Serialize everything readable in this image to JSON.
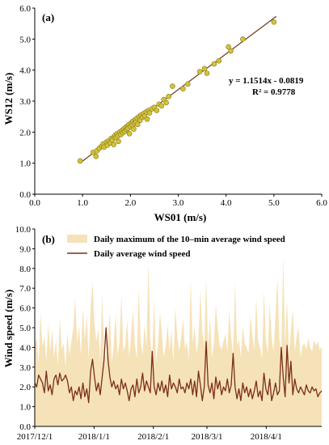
{
  "chart_data": [
    {
      "panel": "(a)",
      "type": "scatter",
      "xlabel": "WS01 (m/s)",
      "ylabel": "WS12 (m/s)",
      "xlim": [
        0.0,
        6.0
      ],
      "ylim": [
        0.0,
        6.0
      ],
      "x_ticks": [
        "0.0",
        "1.0",
        "2.0",
        "3.0",
        "4.0",
        "5.0",
        "6.0"
      ],
      "y_ticks": [
        "0.0",
        "1.0",
        "2.0",
        "3.0",
        "4.0",
        "5.0",
        "6.0"
      ],
      "grid": false,
      "annotations": [
        "y = 1.1514x - 0.0819",
        "R² = 0.9778"
      ],
      "trendline": {
        "slope": 1.1514,
        "intercept": -0.0819,
        "x_range": [
          0.95,
          5.05
        ]
      },
      "points": [
        [
          0.95,
          1.07
        ],
        [
          1.22,
          1.35
        ],
        [
          1.28,
          1.22
        ],
        [
          1.3,
          1.4
        ],
        [
          1.35,
          1.48
        ],
        [
          1.4,
          1.55
        ],
        [
          1.43,
          1.62
        ],
        [
          1.45,
          1.52
        ],
        [
          1.5,
          1.68
        ],
        [
          1.52,
          1.58
        ],
        [
          1.55,
          1.72
        ],
        [
          1.58,
          1.65
        ],
        [
          1.6,
          1.8
        ],
        [
          1.62,
          1.75
        ],
        [
          1.65,
          1.6
        ],
        [
          1.66,
          1.85
        ],
        [
          1.68,
          1.9
        ],
        [
          1.7,
          1.82
        ],
        [
          1.72,
          1.95
        ],
        [
          1.74,
          1.88
        ],
        [
          1.75,
          1.7
        ],
        [
          1.78,
          2.0
        ],
        [
          1.8,
          1.92
        ],
        [
          1.82,
          2.05
        ],
        [
          1.84,
          1.98
        ],
        [
          1.86,
          2.1
        ],
        [
          1.88,
          2.02
        ],
        [
          1.9,
          2.15
        ],
        [
          1.92,
          2.08
        ],
        [
          1.94,
          2.2
        ],
        [
          1.95,
          2.12
        ],
        [
          1.97,
          2.25
        ],
        [
          1.98,
          1.95
        ],
        [
          2.0,
          2.18
        ],
        [
          2.02,
          2.3
        ],
        [
          2.04,
          2.22
        ],
        [
          2.05,
          2.35
        ],
        [
          2.07,
          2.1
        ],
        [
          2.08,
          2.28
        ],
        [
          2.1,
          2.4
        ],
        [
          2.12,
          2.32
        ],
        [
          2.14,
          2.45
        ],
        [
          2.15,
          2.25
        ],
        [
          2.18,
          2.5
        ],
        [
          2.2,
          2.38
        ],
        [
          2.22,
          2.55
        ],
        [
          2.25,
          2.48
        ],
        [
          2.28,
          2.6
        ],
        [
          2.3,
          2.52
        ],
        [
          2.33,
          2.65
        ],
        [
          2.35,
          2.42
        ],
        [
          2.38,
          2.7
        ],
        [
          2.4,
          2.62
        ],
        [
          2.45,
          2.75
        ],
        [
          2.5,
          2.8
        ],
        [
          2.55,
          2.7
        ],
        [
          2.6,
          2.9
        ],
        [
          2.65,
          2.85
        ],
        [
          2.7,
          3.05
        ],
        [
          2.75,
          2.95
        ],
        [
          2.8,
          3.15
        ],
        [
          2.88,
          3.48
        ],
        [
          3.1,
          3.4
        ],
        [
          3.2,
          3.55
        ],
        [
          3.45,
          3.95
        ],
        [
          3.55,
          4.05
        ],
        [
          3.6,
          3.9
        ],
        [
          3.75,
          4.2
        ],
        [
          3.85,
          4.3
        ],
        [
          4.05,
          4.75
        ],
        [
          4.1,
          4.62
        ],
        [
          4.35,
          5.0
        ],
        [
          5.0,
          5.55
        ]
      ]
    },
    {
      "panel": "(b)",
      "type": "area",
      "ylabel": "Wind speed (m/s)",
      "ylim": [
        0.0,
        10.0
      ],
      "y_ticks": [
        "0.0",
        "1.0",
        "2.0",
        "3.0",
        "4.0",
        "5.0",
        "6.0",
        "7.0",
        "8.0",
        "9.0",
        "10.0"
      ],
      "x_ticks": [
        "2017/12/1",
        "2018/1/1",
        "2018/2/1",
        "2018/3/1",
        "2018/4/1"
      ],
      "x_start": "2017/12/1",
      "x_end": "2018/4/30",
      "legend_placement": "top-left",
      "series": [
        {
          "name": "Daily maximum of the 10–min average wind speed",
          "type": "area",
          "color": "#f6e2b8",
          "values": [
            4.1,
            4.5,
            3.2,
            5.8,
            4.0,
            4.6,
            3.3,
            5.2,
            3.8,
            4.9,
            3.5,
            4.4,
            3.1,
            5.5,
            3.9,
            4.2,
            3.0,
            4.8,
            3.6,
            4.3,
            5.0,
            6.5,
            4.2,
            5.1,
            3.6,
            6.0,
            4.4,
            5.6,
            3.4,
            6.1,
            7.3,
            5.2,
            4.3,
            5.0,
            3.4,
            6.7,
            4.0,
            3.3,
            4.5,
            5.8,
            3.2,
            4.2,
            5.7,
            3.6,
            4.3,
            6.7,
            3.8,
            4.1,
            5.4,
            3.5,
            4.6,
            5.9,
            4.2,
            3.4,
            7.0,
            4.3,
            3.6,
            5.2,
            4.0,
            8.3,
            4.4,
            3.6,
            6.5,
            3.2,
            4.2,
            5.8,
            4.7,
            3.5,
            4.1,
            5.2,
            3.8,
            4.9,
            3.3,
            6.0,
            4.6,
            3.8,
            4.5,
            5.5,
            3.9,
            4.3,
            3.4,
            7.5,
            4.2,
            5.1,
            3.7,
            4.4,
            6.9,
            4.8,
            4.1,
            7.5,
            4.0,
            5.6,
            3.5,
            4.2,
            6.2,
            5.0,
            4.1,
            3.9,
            4.3,
            4.7,
            3.8,
            5.9,
            4.5,
            3.6,
            7.3,
            4.1,
            4.4,
            3.5,
            5.1,
            4.2,
            4.0,
            3.7,
            5.6,
            4.6,
            3.9,
            6.5,
            4.3,
            4.0,
            3.4,
            6.9,
            4.4,
            3.7,
            6.3,
            4.5,
            3.8,
            5.6,
            7.5,
            4.4,
            3.8,
            8.6,
            4.2,
            6.4,
            3.6,
            4.9,
            5.9,
            3.8,
            4.6,
            5.0,
            3.5,
            4.1,
            4.2,
            3.9,
            4.5,
            4.0,
            3.8,
            4.4,
            4.1,
            4.3,
            3.9,
            4.0
          ]
        },
        {
          "name": "Daily average wind speed",
          "type": "line",
          "color": "#7a2e1b",
          "values": [
            2.2,
            2.0,
            2.6,
            2.4,
            2.2,
            1.7,
            2.8,
            1.8,
            2.1,
            1.6,
            2.4,
            2.6,
            2.1,
            2.7,
            2.3,
            2.4,
            2.6,
            2.3,
            1.7,
            2.0,
            1.3,
            1.8,
            1.6,
            2.0,
            1.4,
            2.2,
            1.5,
            1.9,
            1.2,
            2.8,
            3.4,
            2.5,
            1.8,
            2.2,
            1.6,
            2.5,
            3.4,
            5.0,
            3.4,
            2.5,
            2.0,
            2.3,
            1.9,
            2.1,
            1.6,
            2.4,
            1.9,
            2.2,
            1.8,
            1.3,
            1.9,
            2.1,
            1.5,
            2.4,
            1.7,
            2.0,
            2.7,
            1.8,
            2.3,
            2.0,
            1.7,
            3.8,
            2.0,
            1.6,
            2.2,
            1.8,
            2.3,
            1.7,
            2.1,
            1.5,
            2.6,
            1.9,
            2.2,
            2.0,
            1.7,
            2.4,
            1.9,
            2.0,
            1.7,
            2.2,
            1.9,
            2.4,
            1.6,
            2.3,
            1.5,
            2.8,
            2.1,
            1.3,
            2.0,
            4.3,
            2.1,
            1.7,
            2.2,
            1.4,
            2.5,
            1.9,
            2.3,
            1.6,
            2.0,
            1.8,
            2.4,
            1.7,
            2.1,
            3.7,
            2.0,
            1.4,
            1.9,
            1.3,
            2.2,
            1.7,
            2.0,
            1.5,
            1.9,
            1.4,
            1.8,
            2.3,
            1.5,
            1.8,
            1.3,
            2.7,
            1.9,
            1.6,
            2.4,
            1.3,
            1.7,
            2.2,
            1.6,
            1.8,
            4.0,
            2.5,
            1.5,
            4.1,
            2.2,
            3.3,
            1.6,
            2.4,
            1.9,
            1.7,
            2.0,
            1.8,
            1.6,
            2.1,
            1.8,
            1.7,
            2.0,
            1.8,
            1.9,
            1.5,
            1.7,
            1.8
          ]
        }
      ]
    }
  ]
}
